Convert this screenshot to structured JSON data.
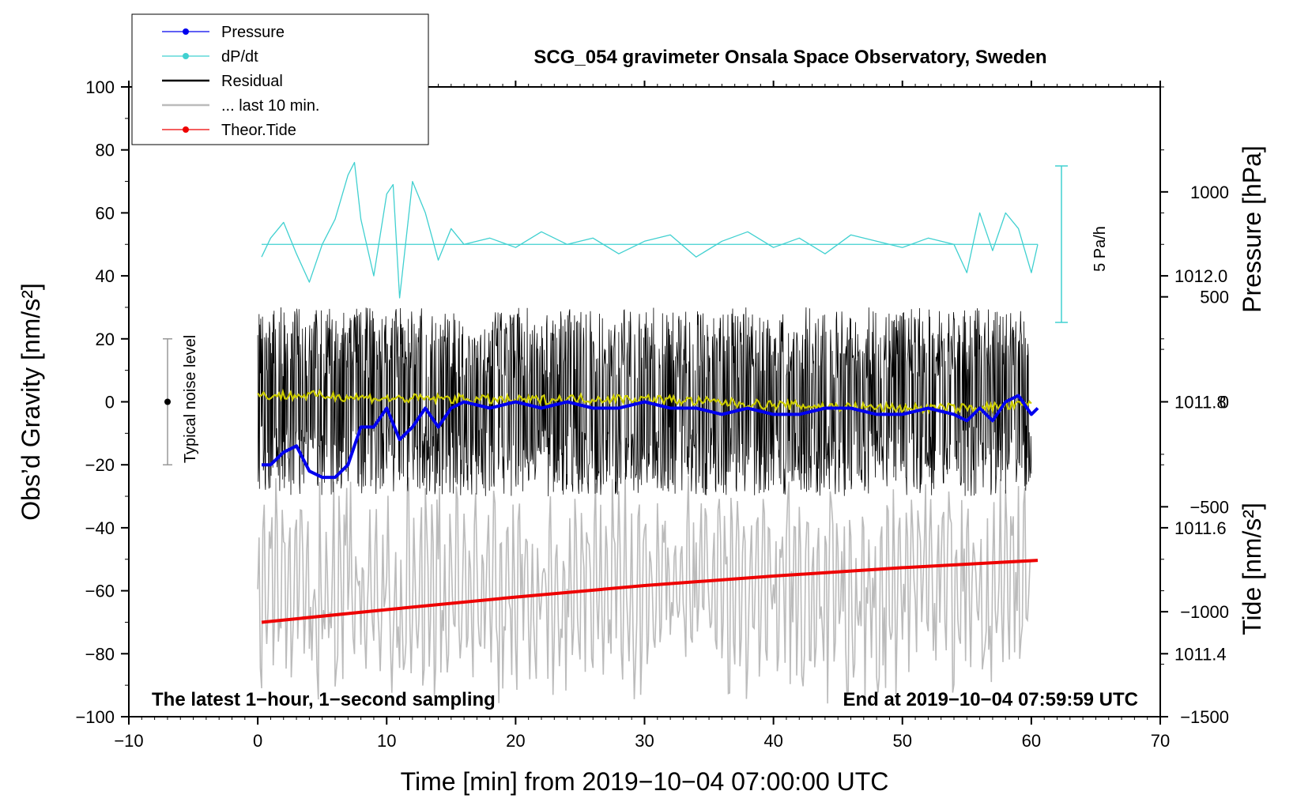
{
  "chart_data": {
    "type": "line",
    "title": "SCG_054 gravimeter Onsala Space Observatory, Sweden",
    "xlabel": "Time [min] from 2019−10−04 07:00:00 UTC",
    "ylabel": "Obs’d Gravity [nm/s²]",
    "y2label": "Pressure [hPa]",
    "y3label": "Tide [nm/s²]",
    "xlim": [
      -10,
      70
    ],
    "ylim": [
      -100,
      100
    ],
    "pressure_lim": [
      1011.3,
      1012.3
    ],
    "tide_lim": [
      -1500,
      1500
    ],
    "x_ticks": [
      "−10",
      "0",
      "10",
      "20",
      "30",
      "40",
      "50",
      "60",
      "70"
    ],
    "y_ticks": [
      "100",
      "80",
      "60",
      "40",
      "20",
      "0",
      "−20",
      "−40",
      "−60",
      "−80",
      "−100"
    ],
    "pressure_ticks": [
      "1012.0",
      "1011.8",
      "1011.6",
      "1011.4"
    ],
    "tide_ticks": [
      "1000",
      "500",
      "0",
      "−500",
      "−1000",
      "−1500"
    ],
    "legend": {
      "position": "top-left",
      "entries": [
        {
          "label": "Pressure",
          "color": "#0000ee"
        },
        {
          "label": "dP/dt",
          "color": "#40d0d0"
        },
        {
          "label": "Residual",
          "color": "#000000"
        },
        {
          "label": "... last 10 min.",
          "color": "#bbbbbb"
        },
        {
          "label": "Theor.Tide",
          "color": "#ee0000"
        }
      ]
    },
    "annotations": {
      "noise": "Typical noise level",
      "noise_range": [
        -20,
        20
      ],
      "rate": "5 Pa/h",
      "bottom_left": "The latest 1−hour, 1−second sampling",
      "bottom_right": "End at 2019−10−04 07:59:59 UTC"
    },
    "series": [
      {
        "name": "Pressure",
        "unit": "hPa",
        "color": "#0000ee",
        "x": [
          0.3,
          1,
          2,
          3,
          4,
          5,
          6,
          7,
          8,
          9,
          10,
          11,
          12,
          13,
          14,
          15,
          16,
          18,
          20,
          22,
          24,
          26,
          28,
          30,
          32,
          34,
          36,
          38,
          40,
          42,
          44,
          46,
          48,
          50,
          52,
          54,
          55,
          56,
          57,
          58,
          59,
          60,
          60.5
        ],
        "values": [
          1011.7,
          1011.7,
          1011.72,
          1011.73,
          1011.69,
          1011.68,
          1011.68,
          1011.7,
          1011.76,
          1011.76,
          1011.79,
          1011.74,
          1011.76,
          1011.79,
          1011.76,
          1011.79,
          1011.8,
          1011.79,
          1011.8,
          1011.79,
          1011.8,
          1011.79,
          1011.79,
          1011.8,
          1011.79,
          1011.79,
          1011.78,
          1011.79,
          1011.78,
          1011.78,
          1011.79,
          1011.79,
          1011.78,
          1011.78,
          1011.79,
          1011.78,
          1011.77,
          1011.79,
          1011.77,
          1011.8,
          1011.81,
          1011.78,
          1011.79
        ]
      },
      {
        "name": "dP/dt",
        "unit": "nm/s² scale",
        "color": "#40d0d0",
        "baseline": 50,
        "x": [
          0.3,
          1,
          2,
          3,
          4,
          5,
          6,
          7,
          7.5,
          8,
          9,
          10,
          10.5,
          11,
          12,
          13,
          14,
          15,
          16,
          18,
          20,
          22,
          24,
          26,
          28,
          30,
          32,
          34,
          36,
          38,
          40,
          42,
          44,
          46,
          48,
          50,
          52,
          54,
          55,
          56,
          57,
          58,
          59,
          60,
          60.5
        ],
        "values": [
          46,
          52,
          57,
          47,
          38,
          50,
          58,
          72,
          76,
          58,
          40,
          66,
          69,
          33,
          70,
          60,
          45,
          55,
          50,
          52,
          49,
          54,
          50,
          52,
          47,
          51,
          53,
          46,
          51,
          54,
          49,
          52,
          47,
          53,
          51,
          49,
          52,
          50,
          41,
          60,
          48,
          60,
          55,
          41,
          50
        ]
      },
      {
        "name": "Residual",
        "unit": "nm/s²",
        "color": "#000000",
        "x": [
          0,
          60
        ],
        "envelope": [
          -30,
          30
        ],
        "values": [
          0,
          0
        ]
      },
      {
        "name": "... last 10 min.",
        "unit": "nm/s²",
        "color": "#bbbbbb",
        "x": [
          0,
          60
        ],
        "envelope": [
          -97,
          -22
        ],
        "values": [
          -60,
          -60
        ]
      },
      {
        "name": "Theor.Tide",
        "unit": "nm/s²",
        "color": "#ee0000",
        "x": [
          0.3,
          10,
          20,
          30,
          40,
          50,
          60.5
        ],
        "values": [
          -1050,
          -990,
          -930,
          -875,
          -830,
          -790,
          -755
        ]
      },
      {
        "name": "Filtered residual",
        "unit": "nm/s²",
        "color": "#cccc00",
        "x": [
          0,
          5,
          10,
          15,
          20,
          25,
          30,
          35,
          40,
          45,
          50,
          55,
          60
        ],
        "values": [
          2,
          2,
          1,
          1,
          0.5,
          1,
          1,
          0,
          -1,
          -1.5,
          -2,
          -2,
          -1
        ]
      }
    ]
  }
}
